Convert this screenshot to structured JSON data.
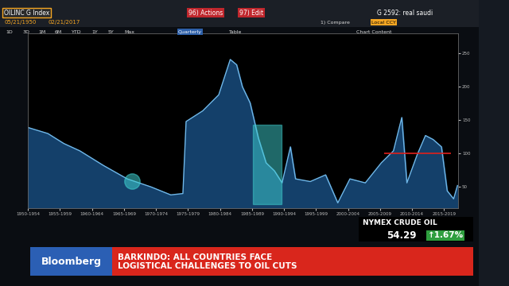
{
  "header": {
    "ticker": "OILINC G Index",
    "start_date": "05/21/1950",
    "end_date": "02/21/2017",
    "buttons": [
      "96) Actions",
      "97) Edit"
    ],
    "chart_name": "G 2592: real saudi",
    "periods": [
      "1D",
      "3D",
      "1M",
      "6M",
      "YTD",
      "1Y",
      "5Y",
      "Max"
    ],
    "frequency": "Quarterly",
    "table": "Table",
    "compare": "1) Compare",
    "currency": "Local CCY",
    "content": "Chart Content"
  },
  "chart_data": {
    "type": "area",
    "color": "#6fb7e8",
    "grid": false,
    "x": [
      1950,
      1953.1,
      1955.6,
      1958.1,
      1961.8,
      1965.5,
      1969.2,
      1972.3,
      1974.2,
      1974.7,
      1977.3,
      1979.8,
      1981.6,
      1982.6,
      1983.5,
      1984.7,
      1986,
      1987.2,
      1988.5,
      1989.7,
      1991,
      1991.8,
      1994.1,
      1996.5,
      1998.4,
      2000.3,
      2002.7,
      2005.2,
      2007.1,
      2008.4,
      2009.2,
      2010.8,
      2012.1,
      2013.3,
      2014.6,
      2015.5,
      2016.5,
      2017.1
    ],
    "values": [
      139,
      130,
      115,
      104,
      82,
      62,
      50,
      38,
      40,
      148,
      164,
      188,
      241,
      233,
      200,
      176,
      123,
      86,
      74,
      56,
      110,
      62,
      58,
      68,
      26,
      62,
      56,
      86,
      104,
      154,
      56,
      98,
      127,
      121,
      110,
      44,
      32,
      52
    ],
    "xlim": [
      1950,
      2017.2
    ],
    "xticks": [
      {
        "value": 1950,
        "label": "1950-1954"
      },
      {
        "value": 1955,
        "label": "1955-1959"
      },
      {
        "value": 1960,
        "label": "1960-1964"
      },
      {
        "value": 1965,
        "label": "1965-1969"
      },
      {
        "value": 1970,
        "label": "1970-1974"
      },
      {
        "value": 1975,
        "label": "1975-1979"
      },
      {
        "value": 1980,
        "label": "1980-1984"
      },
      {
        "value": 1985,
        "label": "1985-1989"
      },
      {
        "value": 1990,
        "label": "1990-1994"
      },
      {
        "value": 1995,
        "label": "1995-1999"
      },
      {
        "value": 2000,
        "label": "2000-2004"
      },
      {
        "value": 2005,
        "label": "2005-2009"
      },
      {
        "value": 2010,
        "label": "2010-2014"
      },
      {
        "value": 2015,
        "label": "2015-2019"
      }
    ],
    "ylim": [
      18,
      280
    ],
    "yticks": [
      50,
      100,
      150,
      200,
      250
    ],
    "annotations": [
      {
        "type": "circle",
        "x": 1966.2,
        "y": 58,
        "color": "#3fd0d0"
      },
      {
        "type": "rect",
        "x": [
          1985.1,
          1989.6
        ],
        "y": [
          24,
          143
        ],
        "color": "#3fd0d0"
      },
      {
        "type": "hline",
        "x": [
          2005.7,
          2016.1
        ],
        "y": 100,
        "color": "#e0201b"
      }
    ]
  },
  "ticker_box": {
    "name": "NYMEX CRUDE OIL",
    "price": "54.29",
    "change": "↑1.67%"
  },
  "lower_third": {
    "brand": "Bloomberg",
    "headline": [
      "BARKINDO: ALL COUNTRIES FACE",
      "LOGISTICAL CHALLENGES TO OIL CUTS"
    ]
  }
}
